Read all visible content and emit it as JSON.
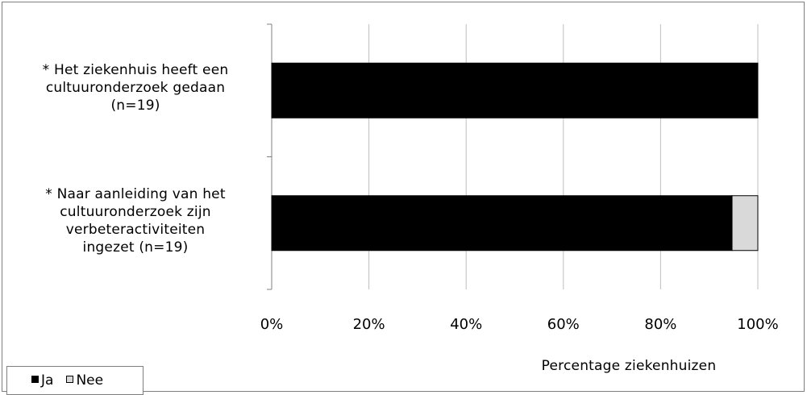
{
  "chart_data": {
    "type": "bar",
    "orientation": "horizontal",
    "stacked": true,
    "categories": [
      "* Het ziekenhuis heeft een\ncultuuronderzoek gedaan\n(n=19)",
      "* Naar aanleiding van het\ncultuuronderzoek zijn\nverbeteractiviteiten\ningezet (n=19)"
    ],
    "series": [
      {
        "name": "Ja",
        "values": [
          100,
          94.7
        ],
        "color": "#000000"
      },
      {
        "name": "Nee",
        "values": [
          0,
          5.3
        ],
        "color": "#d9d9d9"
      }
    ],
    "xlabel": "Percentage ziekenhuizen",
    "ylabel": "",
    "xlim": [
      0,
      100
    ],
    "x_ticks": [
      "0%",
      "20%",
      "40%",
      "60%",
      "80%",
      "100%"
    ],
    "grid": true,
    "legend_position": "bottom-left"
  }
}
